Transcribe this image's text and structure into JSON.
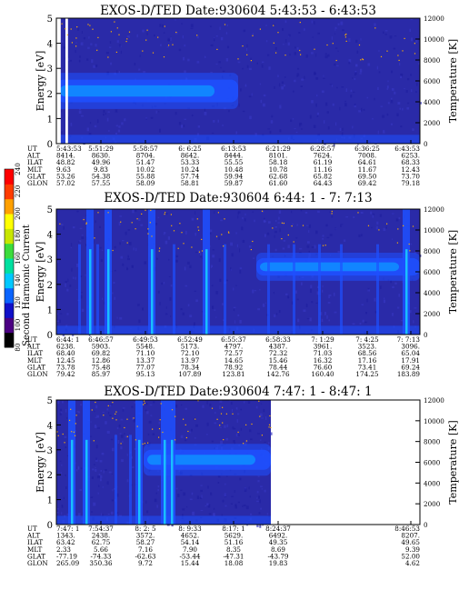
{
  "colors": {
    "background_min": "#2a2aa8",
    "band_blue": "#1e50ff",
    "band_core": "#0f8cff",
    "cyan": "#19d2ff",
    "axis": "#000000",
    "bar_stops": [
      "#000000",
      "#4b0082",
      "#1010c8",
      "#0a64ff",
      "#00c8ff",
      "#00e0a0",
      "#3cdc3c",
      "#c8e600",
      "#ffff00",
      "#ffa000",
      "#ff3c00",
      "#ff0000"
    ]
  },
  "colorbar": {
    "label": "Second Harmonic Current",
    "ticks": [
      "240",
      "220",
      "200",
      "180",
      "160",
      "140",
      "120",
      "100",
      "80"
    ]
  },
  "chart_data": [
    {
      "type": "heatmap",
      "title": "EXOS-D/TED  Date:930604  5:43:53 - 6:43:53",
      "ylabel": "Energy [eV]",
      "ylabel_right": "Temperature [K]",
      "ylim": [
        0,
        5
      ],
      "ylim_right": [
        0,
        12000
      ],
      "yticks": [
        "0",
        "1",
        "2",
        "3",
        "4",
        "5"
      ],
      "yticks_right": [
        "0",
        "2000",
        "4000",
        "6000",
        "8000",
        "10000",
        "12000"
      ],
      "time_range_fraction": [
        0,
        1
      ],
      "features": {
        "band_center_ev": 2.1,
        "band_halfwidth_ev": 0.45,
        "band_end_fraction": 0.5,
        "vertical_stripes": [
          [
            0.0,
            0.012
          ],
          [
            0.025,
            0.032
          ]
        ],
        "spikes": [],
        "stripe_noise": []
      },
      "rows": {
        "labels": [
          "UT",
          "ALT",
          "ILAT",
          "MLT",
          "GLAT",
          "GLON"
        ],
        "columns": [
          [
            "5:43:53",
            "5:51:29",
            "5:58:57",
            "6: 6:25",
            "6:13:53",
            "6:21:29",
            "6:28:57",
            "6:36:25",
            "6:43:53"
          ],
          [
            "8414.",
            "8630.",
            "8704.",
            "8642.",
            "8444.",
            "8101.",
            "7624.",
            "7008.",
            "6253."
          ],
          [
            "48.82",
            "49.96",
            "51.47",
            "53.33",
            "55.55",
            "58.18",
            "61.19",
            "64.61",
            "68.33"
          ],
          [
            "9.63",
            "9.83",
            "10.02",
            "10.24",
            "10.48",
            "10.78",
            "11.16",
            "11.67",
            "12.43"
          ],
          [
            "53.26",
            "54.38",
            "55.88",
            "57.74",
            "59.94",
            "62.68",
            "65.82",
            "69.50",
            "73.70"
          ],
          [
            "57.02",
            "57.55",
            "58.09",
            "58.81",
            "59.87",
            "61.60",
            "64.43",
            "69.42",
            "79.18"
          ]
        ]
      }
    },
    {
      "type": "heatmap",
      "title": "EXOS-D/TED  Date:930604  6:44: 1 - 7: 7:13",
      "ylabel": "Energy [eV]",
      "ylabel_right": "Temperature [K]",
      "ylim": [
        0,
        5
      ],
      "ylim_right": [
        0,
        12000
      ],
      "yticks": [
        "0",
        "1",
        "2",
        "3",
        "4",
        "5"
      ],
      "yticks_right": [
        "0",
        "2000",
        "4000",
        "6000",
        "8000",
        "10000",
        "12000"
      ],
      "time_range_fraction": [
        0,
        1
      ],
      "features": {
        "band_center_ev": 2.7,
        "band_halfwidth_ev": 0.35,
        "band_start_fraction": 0.55,
        "vertical_stripes": [],
        "spikes": [
          0.09,
          0.14,
          0.26,
          0.41,
          0.96
        ],
        "stripe_noise": [
          0.06,
          0.11,
          0.32,
          0.46,
          0.58,
          0.65,
          0.72,
          0.78,
          0.88
        ]
      },
      "rows": {
        "labels": [
          "UT",
          "ALT",
          "ILAT",
          "MLT",
          "GLAT",
          "GLON"
        ],
        "columns": [
          [
            "6:44: 1",
            "6:46:57",
            "6:49:53",
            "6:52:49",
            "6:55:37",
            "6:58:33",
            "7: 1:29",
            "7: 4:25",
            "7: 7:13"
          ],
          [
            "6238.",
            "5903.",
            "5548.",
            "5173.",
            "4797.",
            "4387.",
            "3961.",
            "3523.",
            "3096."
          ],
          [
            "68.40",
            "69.82",
            "71.10",
            "72.10",
            "72.57",
            "72.32",
            "71.03",
            "68.56",
            "65.04"
          ],
          [
            "12.45",
            "12.86",
            "13.37",
            "13.97",
            "14.65",
            "15.46",
            "16.32",
            "17.16",
            "17.91"
          ],
          [
            "73.78",
            "75.48",
            "77.07",
            "78.34",
            "78.92",
            "78.44",
            "76.60",
            "73.41",
            "69.24"
          ],
          [
            "79.42",
            "85.97",
            "95.13",
            "107.89",
            "123.81",
            "142.76",
            "160.40",
            "174.25",
            "183.89"
          ]
        ]
      }
    },
    {
      "type": "heatmap",
      "title": "EXOS-D/TED  Date:930604  7:47: 1 - 8:47: 1",
      "ylabel": "Energy [eV]",
      "ylabel_right": "Temperature [K]",
      "ylim": [
        0,
        5
      ],
      "ylim_right": [
        0,
        12000
      ],
      "yticks": [
        "0",
        "1",
        "2",
        "3",
        "4",
        "5"
      ],
      "yticks_right": [
        "0",
        "2000",
        "4000",
        "6000",
        "8000",
        "10000",
        "12000"
      ],
      "time_range_fraction": [
        0,
        0.59
      ],
      "features": {
        "band_center_ev": 2.6,
        "band_halfwidth_ev": 0.4,
        "band_start_fraction": 0.24,
        "vertical_stripes": [],
        "spikes": [
          0.04,
          0.08,
          0.225,
          0.295,
          0.315
        ],
        "stripe_noise": [
          0.16,
          0.2
        ]
      },
      "rows": {
        "labels": [
          "UT",
          "ALT",
          "ILAT",
          "MLT",
          "GLAT",
          "GLON"
        ],
        "columns": [
          [
            "7:47: 1",
            "7:54:37",
            "8: 2: 5",
            "8: 9:33",
            "8:17: 1",
            "8:24:37",
            "",
            "",
            "8:46:53"
          ],
          [
            "1343.",
            "2438.",
            "3572.",
            "4652.",
            "5629.",
            "6492.",
            "",
            "",
            "8207."
          ],
          [
            "63.42",
            "62.75",
            "58.27",
            "54.14",
            "51.16",
            "49.35",
            "",
            "",
            "49.65"
          ],
          [
            "2.33",
            "5.66",
            "7.16",
            "7.90",
            "8.35",
            "8.69",
            "",
            "",
            "9.39"
          ],
          [
            "-77.19",
            "-74.33",
            "-62.63",
            "-53.44",
            "-47.31",
            "-43.79",
            "",
            "",
            "52.00"
          ],
          [
            "265.09",
            "350.36",
            "9.72",
            "15.44",
            "18.08",
            "19.83",
            "",
            "",
            "4.62"
          ]
        ]
      }
    }
  ]
}
